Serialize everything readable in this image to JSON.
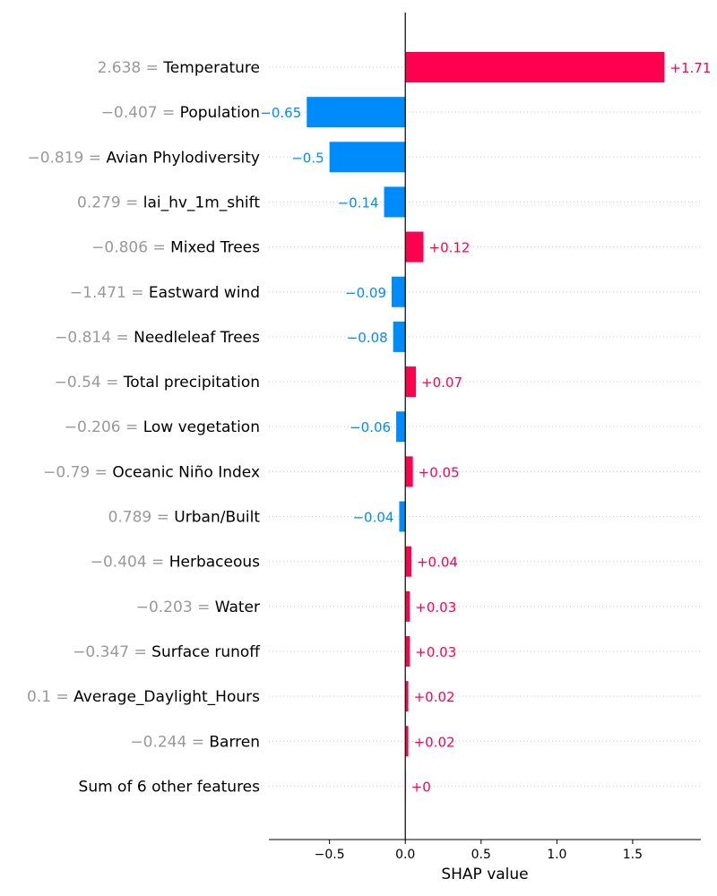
{
  "chart_data": {
    "type": "bar",
    "orientation": "horizontal",
    "xlabel": "SHAP value",
    "xlim": [
      -0.9,
      1.95
    ],
    "xticks": [
      -0.5,
      0.0,
      0.5,
      1.0,
      1.5
    ],
    "xtick_labels": [
      "−0.5",
      "0.0",
      "0.5",
      "1.0",
      "1.5"
    ],
    "grid": "dotted horizontal row lines",
    "colors": {
      "positive": "#ff0051",
      "negative": "#008bfb",
      "feature_value": "#999999"
    },
    "features": [
      {
        "value": "2.638",
        "name": "Temperature",
        "shap": 1.71,
        "label": "+1.71"
      },
      {
        "value": "−0.407",
        "name": "Population",
        "shap": -0.65,
        "label": "−0.65"
      },
      {
        "value": "−0.819",
        "name": "Avian Phylodiversity",
        "shap": -0.5,
        "label": "−0.5"
      },
      {
        "value": "0.279",
        "name": "lai_hv_1m_shift",
        "shap": -0.14,
        "label": "−0.14"
      },
      {
        "value": "−0.806",
        "name": "Mixed Trees",
        "shap": 0.12,
        "label": "+0.12"
      },
      {
        "value": "−1.471",
        "name": "Eastward wind",
        "shap": -0.09,
        "label": "−0.09"
      },
      {
        "value": "−0.814",
        "name": "Needleleaf Trees",
        "shap": -0.08,
        "label": "−0.08"
      },
      {
        "value": "−0.54",
        "name": "Total precipitation",
        "shap": 0.07,
        "label": "+0.07"
      },
      {
        "value": "−0.206",
        "name": "Low vegetation",
        "shap": -0.06,
        "label": "−0.06"
      },
      {
        "value": "−0.79",
        "name": "Oceanic Niño Index",
        "shap": 0.05,
        "label": "+0.05"
      },
      {
        "value": "0.789",
        "name": "Urban/Built",
        "shap": -0.04,
        "label": "−0.04"
      },
      {
        "value": "−0.404",
        "name": "Herbaceous",
        "shap": 0.04,
        "label": "+0.04"
      },
      {
        "value": "−0.203",
        "name": "Water",
        "shap": 0.03,
        "label": "+0.03"
      },
      {
        "value": "−0.347",
        "name": "Surface runoff",
        "shap": 0.03,
        "label": "+0.03"
      },
      {
        "value": "0.1",
        "name": "Average_Daylight_Hours",
        "shap": 0.02,
        "label": "+0.02"
      },
      {
        "value": "−0.244",
        "name": "Barren",
        "shap": 0.02,
        "label": "+0.02"
      },
      {
        "value": "",
        "name": "Sum of 6 other features",
        "shap": 0.003,
        "label": "+0"
      }
    ]
  }
}
